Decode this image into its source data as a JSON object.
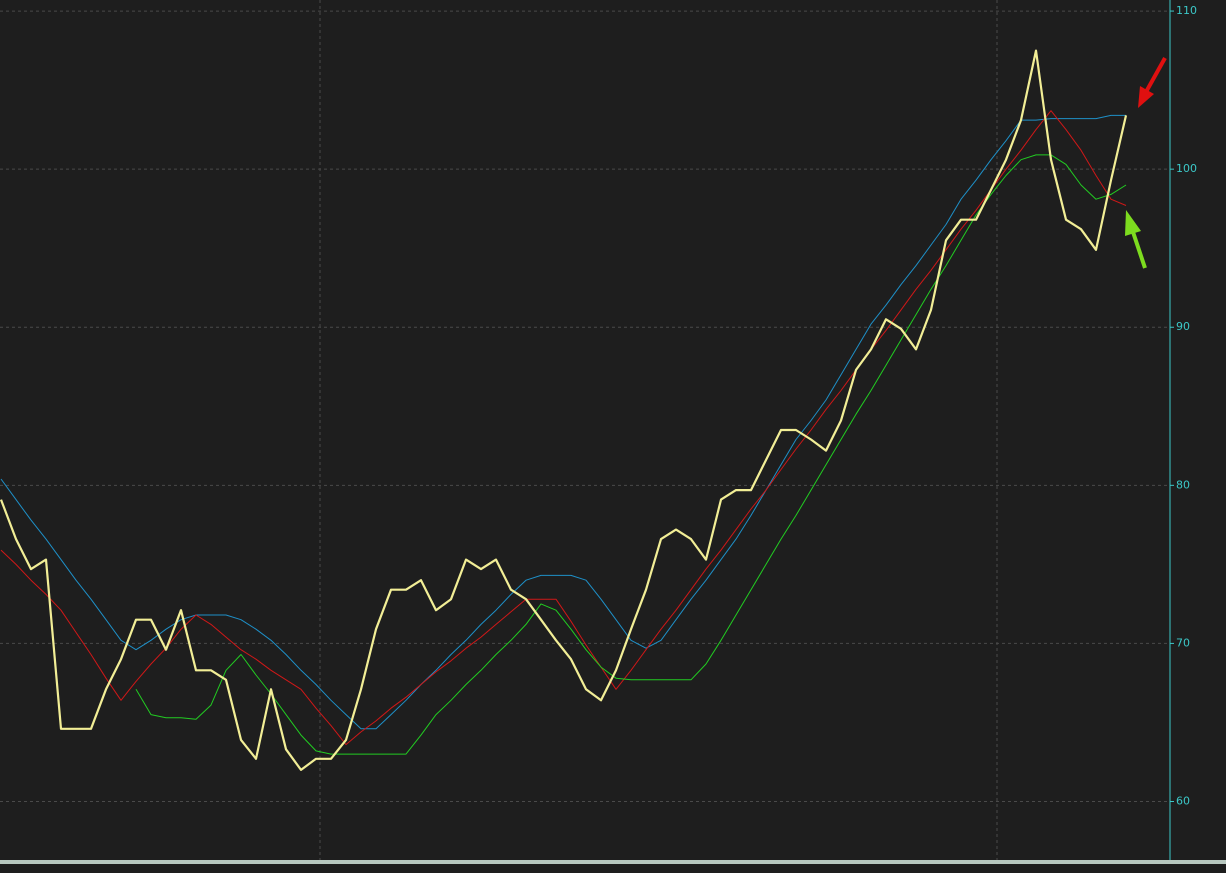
{
  "chart_data": {
    "type": "line",
    "ylim": [
      56.3,
      110.7
    ],
    "yticks": [
      60,
      70,
      80,
      90,
      100,
      110
    ],
    "grid": true,
    "series": [
      {
        "name": null,
        "color": "#1e90c8",
        "values": [
          80.4,
          79.1,
          77.8,
          76.6,
          75.3,
          74.0,
          72.8,
          71.5,
          70.2,
          69.6,
          70.2,
          70.9,
          71.5,
          71.8,
          71.8,
          71.8,
          71.5,
          70.9,
          70.2,
          69.3,
          68.3,
          67.4,
          66.4,
          65.5,
          64.6,
          64.6,
          65.5,
          66.4,
          67.4,
          68.3,
          69.3,
          70.2,
          71.2,
          72.1,
          73.1,
          74.0,
          74.3,
          74.3,
          74.3,
          74.0,
          72.8,
          71.5,
          70.2,
          69.7,
          70.2,
          71.5,
          72.8,
          74.0,
          75.3,
          76.6,
          78.1,
          79.7,
          81.3,
          82.9,
          84.1,
          85.4,
          87.0,
          88.6,
          90.2,
          91.4,
          92.7,
          93.9,
          95.2,
          96.5,
          98.1,
          99.3,
          100.6,
          101.8,
          103.1,
          103.1,
          103.2,
          103.2,
          103.2,
          103.2,
          103.4,
          103.4
        ]
      },
      {
        "name": null,
        "color": "#d01818",
        "values": [
          75.9,
          75.0,
          74.0,
          73.1,
          72.1,
          70.7,
          69.3,
          67.8,
          66.4,
          67.6,
          68.7,
          69.7,
          70.9,
          71.8,
          71.2,
          70.4,
          69.6,
          69.0,
          68.3,
          67.7,
          67.1,
          65.9,
          64.8,
          63.6,
          64.4,
          65.1,
          65.9,
          66.6,
          67.4,
          68.2,
          68.9,
          69.7,
          70.4,
          71.2,
          72.0,
          72.8,
          72.8,
          72.8,
          71.4,
          69.9,
          68.5,
          67.1,
          68.3,
          69.6,
          70.9,
          72.1,
          73.4,
          74.7,
          75.9,
          77.2,
          78.5,
          79.7,
          81.0,
          82.3,
          83.5,
          84.8,
          86.0,
          87.3,
          88.6,
          89.8,
          91.1,
          92.4,
          93.6,
          94.9,
          96.2,
          97.4,
          98.7,
          100.0,
          101.2,
          102.5,
          103.7,
          102.5,
          101.2,
          99.6,
          98.1,
          97.7
        ]
      },
      {
        "name": null,
        "color": "#22cc22",
        "values": [
          null,
          null,
          null,
          null,
          null,
          null,
          null,
          null,
          null,
          67.1,
          65.5,
          65.3,
          65.3,
          65.2,
          66.1,
          68.3,
          69.3,
          68.0,
          66.8,
          65.5,
          64.2,
          63.2,
          63.0,
          63.0,
          63.0,
          63.0,
          63.0,
          63.0,
          64.2,
          65.5,
          66.4,
          67.4,
          68.3,
          69.3,
          70.2,
          71.2,
          72.5,
          72.1,
          70.9,
          69.6,
          68.5,
          67.8,
          67.7,
          67.7,
          67.7,
          67.7,
          67.7,
          68.7,
          70.2,
          71.8,
          73.4,
          75.0,
          76.6,
          78.1,
          79.7,
          81.3,
          82.9,
          84.5,
          86.0,
          87.6,
          89.2,
          90.8,
          92.4,
          93.9,
          95.5,
          97.1,
          98.4,
          99.6,
          100.6,
          100.9,
          100.9,
          100.3,
          99.0,
          98.1,
          98.4,
          99.0
        ]
      },
      {
        "name": null,
        "color": "#f2ee96",
        "values": [
          79.1,
          76.6,
          74.7,
          75.3,
          64.6,
          64.6,
          64.6,
          67.1,
          69.0,
          71.5,
          71.5,
          69.6,
          72.1,
          68.3,
          68.3,
          67.7,
          63.9,
          62.7,
          67.1,
          63.3,
          62.0,
          62.7,
          62.7,
          63.9,
          67.1,
          70.9,
          73.4,
          73.4,
          74.0,
          72.1,
          72.8,
          75.3,
          74.7,
          75.3,
          73.4,
          72.8,
          71.5,
          70.2,
          69.0,
          67.1,
          66.4,
          68.3,
          70.9,
          73.4,
          76.6,
          77.2,
          76.6,
          75.3,
          79.1,
          79.7,
          79.7,
          81.6,
          83.5,
          83.5,
          82.9,
          82.2,
          84.1,
          87.3,
          88.6,
          90.5,
          89.9,
          88.6,
          91.1,
          95.5,
          96.8,
          96.8,
          98.7,
          100.6,
          103.1,
          107.5,
          100.6,
          96.8,
          96.2,
          94.9,
          99.3,
          103.4
        ]
      }
    ]
  }
}
